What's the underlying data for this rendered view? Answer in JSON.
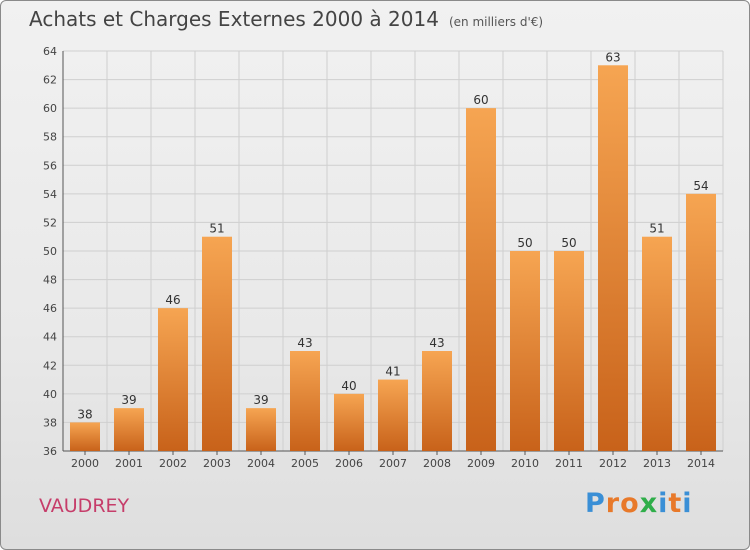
{
  "header": {
    "title": "Achats et Charges Externes 2000 à 2014",
    "unit": "(en milliers d'€)"
  },
  "footer": {
    "commune": "VAUDREY",
    "brand": "Proxiti"
  },
  "colors": {
    "bar_light": "#f6a552",
    "bar_dark": "#c8621a",
    "grid": "#cfcfcf",
    "commune": "#c63d6a"
  },
  "chart_data": {
    "type": "bar",
    "title": "Achats et Charges Externes 2000 à 2014",
    "subtitle": "(en milliers d'€)",
    "categories": [
      "2000",
      "2001",
      "2002",
      "2003",
      "2004",
      "2005",
      "2006",
      "2007",
      "2008",
      "2009",
      "2010",
      "2011",
      "2012",
      "2013",
      "2014"
    ],
    "values": [
      38,
      39,
      46,
      51,
      39,
      43,
      40,
      41,
      43,
      60,
      50,
      50,
      63,
      51,
      54
    ],
    "ylim": [
      36,
      64
    ],
    "yticks": [
      36,
      38,
      40,
      42,
      44,
      46,
      48,
      50,
      52,
      54,
      56,
      58,
      60,
      62,
      64
    ],
    "grid": true,
    "legend": "none"
  }
}
